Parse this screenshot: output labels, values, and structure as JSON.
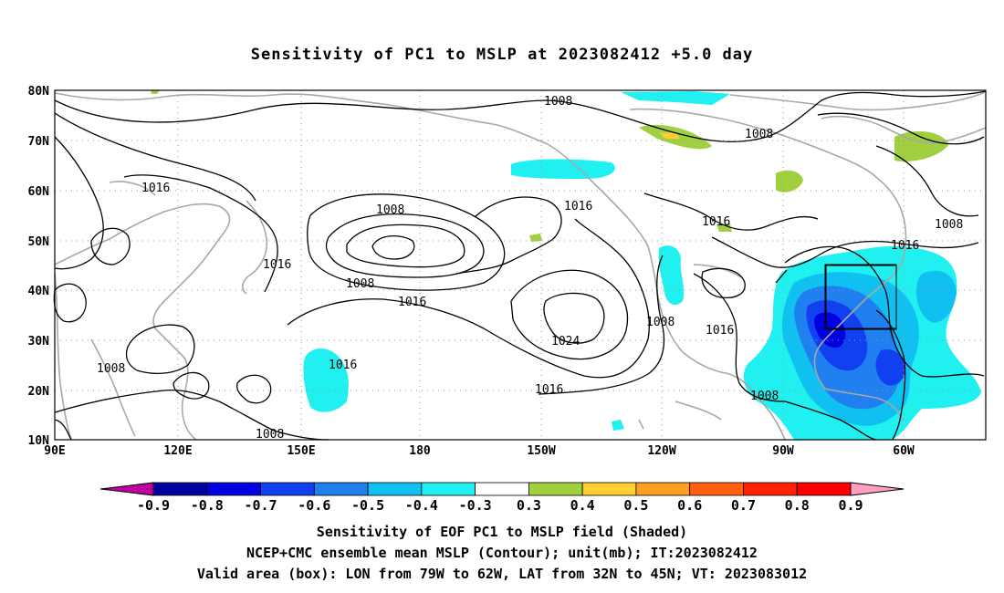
{
  "title": "Sensitivity of PC1 to MSLP at 2023082412 +5.0 day",
  "lat_ticks": [
    "80N",
    "70N",
    "60N",
    "50N",
    "40N",
    "30N",
    "20N",
    "10N"
  ],
  "lon_ticks": [
    "90E",
    "120E",
    "150E",
    "180",
    "150W",
    "120W",
    "90W",
    "60W"
  ],
  "contour_labels": [
    {
      "text": "1008",
      "key": "c1"
    },
    {
      "text": "1008",
      "key": "c2"
    },
    {
      "text": "1016",
      "key": "c3"
    },
    {
      "text": "1008",
      "key": "c4"
    },
    {
      "text": "1016",
      "key": "c5"
    },
    {
      "text": "1016",
      "key": "c6"
    },
    {
      "text": "1016",
      "key": "c7"
    },
    {
      "text": "1008",
      "key": "c8"
    },
    {
      "text": "1016",
      "key": "c9"
    },
    {
      "text": "1008",
      "key": "c10"
    },
    {
      "text": "1016",
      "key": "c11"
    },
    {
      "text": "1024",
      "key": "c12"
    },
    {
      "text": "1016",
      "key": "c13"
    },
    {
      "text": "1016",
      "key": "c14"
    },
    {
      "text": "1008",
      "key": "c15"
    },
    {
      "text": "1016",
      "key": "c16"
    },
    {
      "text": "1008",
      "key": "c17"
    },
    {
      "text": "1008",
      "key": "c18"
    },
    {
      "text": "1008",
      "key": "c19"
    },
    {
      "text": "1008",
      "key": "c20"
    },
    {
      "text": "1016",
      "key": "c21"
    }
  ],
  "colorbar": {
    "labels": [
      "-0.9",
      "-0.8",
      "-0.7",
      "-0.6",
      "-0.5",
      "-0.4",
      "-0.3",
      "0.3",
      "0.4",
      "0.5",
      "0.6",
      "0.7",
      "0.8",
      "0.9"
    ],
    "colors": [
      "#c000a0",
      "#0000a0",
      "#0000e0",
      "#1040f0",
      "#2080f0",
      "#10c0f0",
      "#20f0f0",
      "#ffffff",
      "#a0d040",
      "#ffd030",
      "#ffa020",
      "#ff6010",
      "#ff2000",
      "#ff0000",
      "#ffa0c0"
    ]
  },
  "captions": {
    "line1": "Sensitivity of EOF PC1 to MSLP field (Shaded)",
    "line2": "NCEP+CMC ensemble mean MSLP (Contour); unit(mb); IT:2023082412",
    "line3": "Valid area (box): LON from 79W to 62W, LAT from 32N to 45N; VT: 2023083012"
  }
}
